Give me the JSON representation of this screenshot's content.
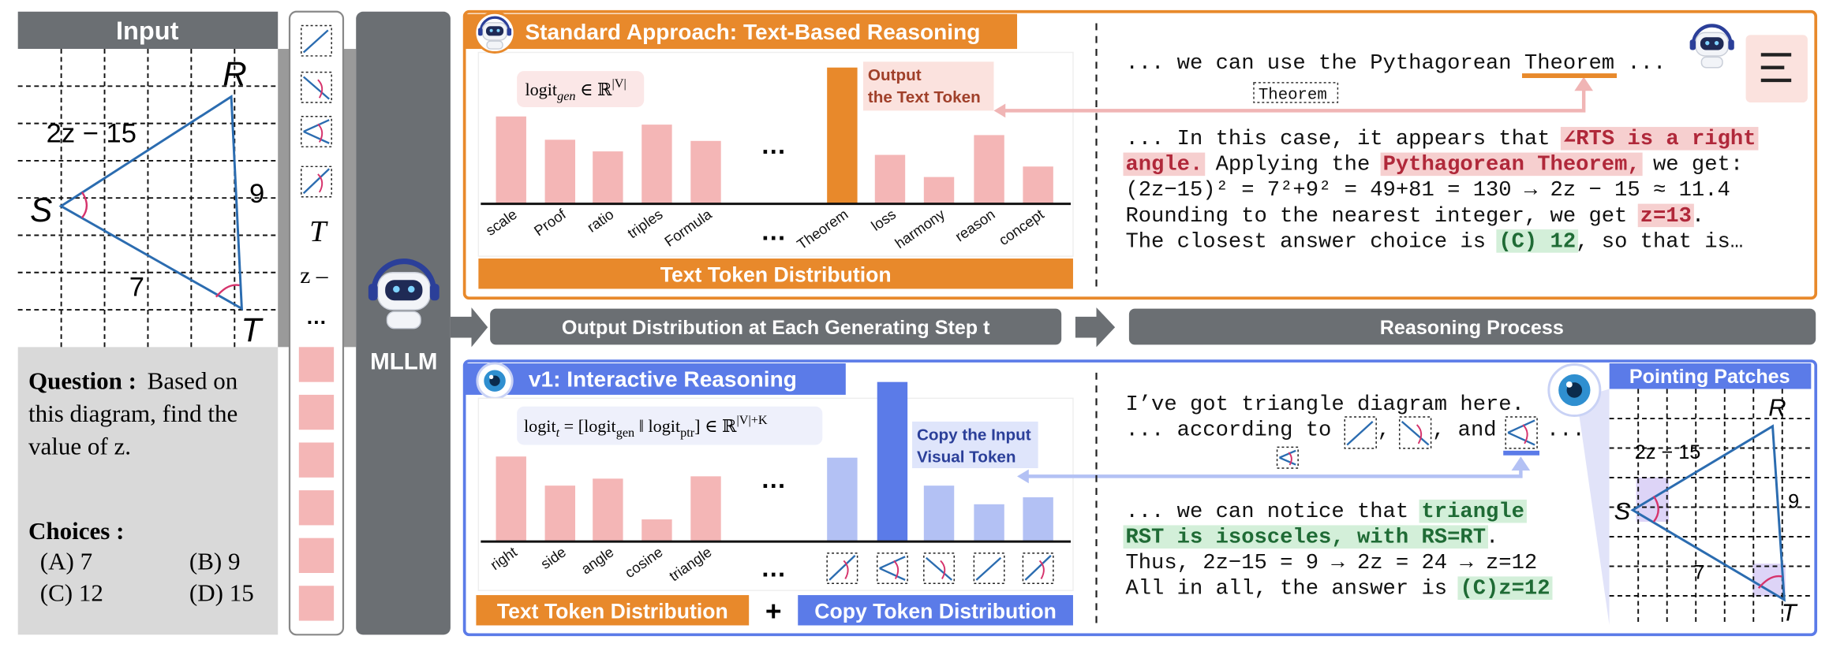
{
  "input": {
    "title": "Input",
    "diagram": {
      "vertices": [
        "R",
        "S",
        "T"
      ],
      "sides": [
        "2z − 15",
        "9",
        "7"
      ]
    },
    "question": {
      "label": "Question :",
      "lines": [
        "Based on",
        "this diagram, find the",
        "value of z."
      ]
    },
    "choices": {
      "label": "Choices :",
      "options": [
        "(A) 7",
        "(B) 9",
        "(C) 12",
        "(D) 15"
      ]
    }
  },
  "strip": {
    "patches": [
      "T",
      "z –"
    ],
    "ellipsis": "…"
  },
  "model": {
    "name": "MLLM"
  },
  "standard": {
    "title": "Standard Approach: Text-Based Reasoning",
    "logit": [
      "logit",
      "gen",
      " ∈ ℝ",
      "|V|"
    ],
    "tokens": [
      "scale",
      "Proof",
      "ratio",
      "triples",
      "Formula",
      "Theorem",
      "loss",
      "harmony",
      "reason",
      "concept"
    ],
    "ellipsis": "…",
    "annotation": [
      "Output",
      "the Text Token"
    ],
    "distribution": "Text Token Distribution",
    "token_box": "Theorem",
    "reasoning": [
      [
        "... we can use the Pythagorean ",
        "Theorem",
        " ..."
      ],
      [
        "... In this case, it appears that ",
        "∠RTS is a right"
      ],
      [
        "angle.",
        " Applying the ",
        "Pythagorean Theorem,",
        " we get:"
      ],
      [
        "(2z−15)² = 7²+9² = 49+81 = 130 → 2z − 15 ≈ 11.4"
      ],
      [
        "Rounding to the nearest integer, we get ",
        "z=13",
        "."
      ],
      [
        "The closest answer choice is ",
        "(C) 12",
        ", so that is…"
      ]
    ]
  },
  "middle": {
    "steps": "Output Distribution at Each Generating Step t",
    "reasoning": "Reasoning Process"
  },
  "v1": {
    "title": "v1: Interactive Reasoning",
    "logit": [
      "logit",
      "t",
      " = [logit",
      "gen",
      " ‖ logit",
      "ptr",
      "] ∈ ℝ",
      "|V|+K"
    ],
    "tokens": [
      "right",
      "side",
      "angle",
      "cosine",
      "triangle"
    ],
    "ellipsis": "…",
    "annotation": [
      "Copy the Input",
      "Visual Token"
    ],
    "distributions": [
      "Text Token Distribution",
      "Copy Token Distribution"
    ],
    "plus": "+",
    "reasoning": [
      [
        "I’ve got triangle diagram here."
      ],
      [
        "... according to",
        ",",
        ", and",
        "..."
      ],
      [
        "... we can notice that ",
        "triangle"
      ],
      [
        "RST is isosceles, with RS=RT",
        "."
      ],
      [
        "Thus, 2z−15 = 9 → 2z = 24 → z=12"
      ],
      [
        "All in all, the answer is ",
        "(C)z=12"
      ]
    ],
    "pointing": {
      "title": "Pointing Patches",
      "vertices": [
        "R",
        "S",
        "T"
      ],
      "sides": [
        "2z − 15",
        "9",
        "7"
      ]
    }
  }
}
